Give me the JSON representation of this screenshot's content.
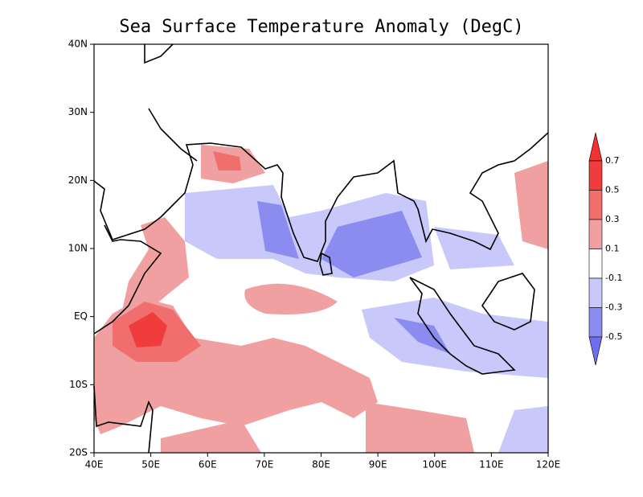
{
  "title": "Sea Surface Temperature Anomaly (DegC)",
  "map": {
    "x_labels": [
      "40E",
      "50E",
      "60E",
      "70E",
      "80E",
      "90E",
      "100E",
      "110E",
      "120E"
    ],
    "y_labels": [
      "40N",
      "30N",
      "20N",
      "10N",
      "EQ",
      "10S",
      "20S"
    ]
  },
  "legend": {
    "labels": [
      "0.7",
      "0.5",
      "0.3",
      "0.1",
      "-0.1",
      "-0.3",
      "-0.5"
    ],
    "colors": [
      "#f03232",
      "#f03c3c",
      "#f06e6e",
      "#f0a0a0",
      "#ffffff",
      "#c8c8fa",
      "#8c8cf0",
      "#6e6ef0"
    ]
  }
}
